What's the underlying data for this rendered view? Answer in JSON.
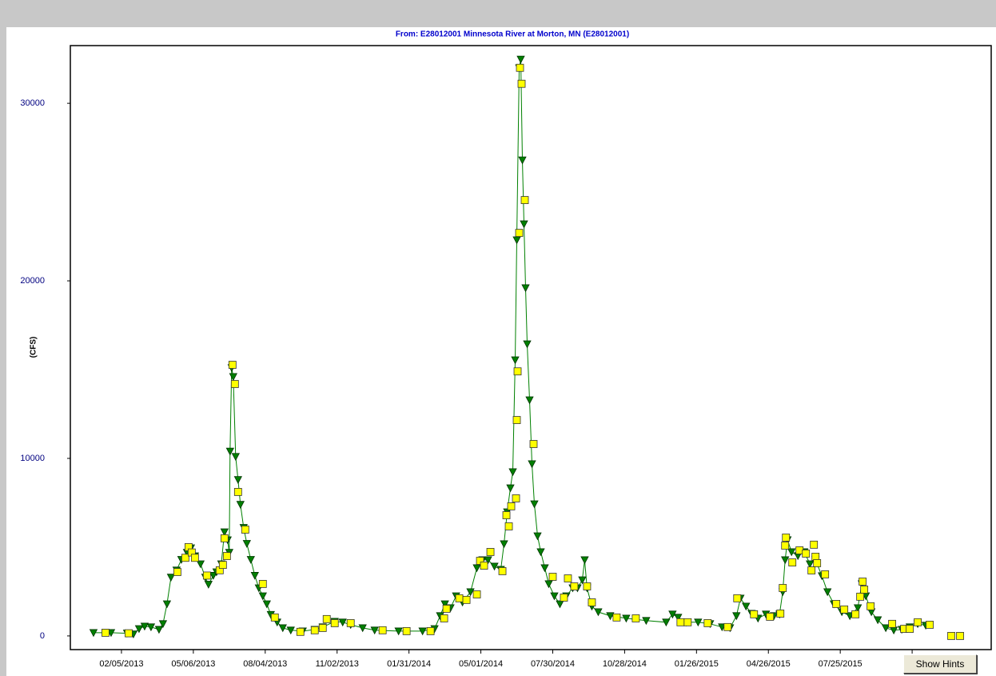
{
  "chart_data": {
    "type": "line",
    "title": "From: E28012001  Minnesota River at Morton, MN (E28012001)",
    "ylabel": "(CFS)",
    "xlim": [
      "2012-12-03",
      "2016-01-30"
    ],
    "xticks": [
      {
        "value": "2013-02-05",
        "label": "02/05/2013"
      },
      {
        "value": "2013-05-06",
        "label": "05/06/2013"
      },
      {
        "value": "2013-08-04",
        "label": "08/04/2013"
      },
      {
        "value": "2013-11-02",
        "label": "11/02/2013"
      },
      {
        "value": "2014-01-31",
        "label": "01/31/2014"
      },
      {
        "value": "2014-05-01",
        "label": "05/01/2014"
      },
      {
        "value": "2014-07-30",
        "label": "07/30/2014"
      },
      {
        "value": "2014-10-28",
        "label": "10/28/2014"
      },
      {
        "value": "2015-01-26",
        "label": "01/26/2015"
      },
      {
        "value": "2015-04-26",
        "label": "04/26/2015"
      },
      {
        "value": "2015-07-25",
        "label": "07/25/2015"
      },
      {
        "value": "2015-10-23",
        "label": "10/"
      }
    ],
    "ylim": [
      -770,
      33250
    ],
    "yticks": [
      0,
      10000,
      20000,
      30000
    ],
    "series": [
      {
        "color": "#008000",
        "marker": "triangle",
        "line": true,
        "x": [
          "2013-01-01",
          "2013-01-23",
          "2013-02-12",
          "2013-02-20",
          "2013-02-27",
          "2013-03-06",
          "2013-03-14",
          "2013-03-24",
          "2013-03-29",
          "2013-04-03",
          "2013-04-08",
          "2013-04-15",
          "2013-04-21",
          "2013-04-28",
          "2013-05-03",
          "2013-05-08",
          "2013-05-15",
          "2013-05-21",
          "2013-05-25",
          "2013-05-31",
          "2013-06-04",
          "2013-06-10",
          "2013-06-14",
          "2013-06-18",
          "2013-06-20",
          "2013-06-21",
          "2013-06-23",
          "2013-06-25",
          "2013-06-28",
          "2013-07-01",
          "2013-07-04",
          "2013-07-08",
          "2013-07-12",
          "2013-07-17",
          "2013-07-22",
          "2013-07-27",
          "2013-08-01",
          "2013-08-06",
          "2013-08-11",
          "2013-08-19",
          "2013-08-26",
          "2013-09-05",
          "2013-09-20",
          "2013-10-05",
          "2013-10-15",
          "2013-10-30",
          "2013-11-09",
          "2013-11-19",
          "2013-12-04",
          "2013-12-19",
          "2014-01-18",
          "2014-02-17",
          "2014-03-04",
          "2014-03-11",
          "2014-03-17",
          "2014-03-24",
          "2014-03-31",
          "2014-04-08",
          "2014-04-18",
          "2014-04-26",
          "2014-05-03",
          "2014-05-10",
          "2014-05-18",
          "2014-05-26",
          "2014-05-30",
          "2014-06-03",
          "2014-06-07",
          "2014-06-10",
          "2014-06-13",
          "2014-06-15",
          "2014-06-18",
          "2014-06-20",
          "2014-06-22",
          "2014-06-24",
          "2014-06-26",
          "2014-06-28",
          "2014-07-01",
          "2014-07-04",
          "2014-07-07",
          "2014-07-11",
          "2014-07-15",
          "2014-07-20",
          "2014-07-25",
          "2014-08-01",
          "2014-08-08",
          "2014-08-16",
          "2014-08-24",
          "2014-08-30",
          "2014-09-05",
          "2014-09-08",
          "2014-09-11",
          "2014-09-17",
          "2014-09-25",
          "2014-10-10",
          "2014-10-30",
          "2014-11-24",
          "2014-12-19",
          "2014-12-27",
          "2015-01-03",
          "2015-01-13",
          "2015-01-28",
          "2015-02-12",
          "2015-02-27",
          "2015-03-09",
          "2015-03-17",
          "2015-03-22",
          "2015-03-29",
          "2015-04-05",
          "2015-04-13",
          "2015-04-23",
          "2015-05-03",
          "2015-05-10",
          "2015-05-14",
          "2015-05-17",
          "2015-05-20",
          "2015-05-25",
          "2015-06-02",
          "2015-06-10",
          "2015-06-17",
          "2015-06-24",
          "2015-07-02",
          "2015-07-09",
          "2015-07-17",
          "2015-07-27",
          "2015-08-06",
          "2015-08-16",
          "2015-08-21",
          "2015-08-26",
          "2015-09-02",
          "2015-09-10",
          "2015-09-20",
          "2015-09-30",
          "2015-10-10",
          "2015-10-20",
          "2015-10-30",
          "2015-11-09"
        ],
        "values": [
          180,
          180,
          150,
          100,
          400,
          540,
          500,
          360,
          680,
          1800,
          3300,
          3700,
          4300,
          4700,
          4950,
          4500,
          4050,
          3300,
          2900,
          3400,
          3600,
          4050,
          5850,
          5400,
          4700,
          10400,
          15100,
          14600,
          10100,
          8800,
          7400,
          6100,
          5200,
          4300,
          3400,
          2700,
          2250,
          1800,
          1200,
          770,
          450,
          320,
          270,
          360,
          500,
          810,
          770,
          630,
          450,
          320,
          270,
          270,
          400,
          1130,
          1800,
          1580,
          2250,
          1900,
          2480,
          3830,
          4280,
          4280,
          3920,
          3740,
          5180,
          6980,
          8330,
          9240,
          15540,
          22300,
          31990,
          32480,
          26800,
          23200,
          19600,
          16440,
          13290,
          9690,
          7430,
          5630,
          4730,
          3830,
          2930,
          2250,
          1800,
          2250,
          2700,
          2700,
          3150,
          4280,
          2700,
          1670,
          1350,
          1130,
          990,
          860,
          770,
          1220,
          1040,
          770,
          770,
          680,
          500,
          450,
          1130,
          2120,
          1670,
          1260,
          990,
          1220,
          1130,
          1220,
          2480,
          4280,
          5410,
          4730,
          4510,
          4730,
          4050,
          4280,
          3380,
          2480,
          1800,
          1350,
          1130,
          1580,
          2930,
          2250,
          1350,
          900,
          450,
          320,
          360,
          500,
          680,
          590
        ]
      },
      {
        "color": "#ffff00",
        "marker": "square",
        "line": false,
        "x": [
          "2013-01-16",
          "2013-02-14",
          "2013-04-16",
          "2013-04-26",
          "2013-04-30",
          "2013-05-04",
          "2013-05-08",
          "2013-05-23",
          "2013-06-08",
          "2013-06-12",
          "2013-06-14",
          "2013-06-17",
          "2013-06-24",
          "2013-06-27",
          "2013-07-01",
          "2013-07-10",
          "2013-08-01",
          "2013-08-16",
          "2013-09-17",
          "2013-10-05",
          "2013-10-15",
          "2013-10-20",
          "2013-10-30",
          "2013-11-19",
          "2013-12-29",
          "2014-01-28",
          "2014-02-27",
          "2014-03-16",
          "2014-03-19",
          "2014-04-04",
          "2014-04-13",
          "2014-04-26",
          "2014-04-30",
          "2014-05-05",
          "2014-05-13",
          "2014-05-28",
          "2014-06-02",
          "2014-06-05",
          "2014-06-08",
          "2014-06-14",
          "2014-06-15",
          "2014-06-16",
          "2014-06-18",
          "2014-06-19",
          "2014-06-21",
          "2014-06-25",
          "2014-07-06",
          "2014-07-30",
          "2014-08-13",
          "2014-08-18",
          "2014-08-26",
          "2014-09-11",
          "2014-09-17",
          "2014-10-18",
          "2014-11-11",
          "2015-01-06",
          "2015-01-15",
          "2015-02-09",
          "2015-03-06",
          "2015-03-18",
          "2015-04-08",
          "2015-04-28",
          "2015-05-11",
          "2015-05-14",
          "2015-05-17",
          "2015-05-18",
          "2015-05-26",
          "2015-06-04",
          "2015-06-12",
          "2015-06-19",
          "2015-06-22",
          "2015-06-24",
          "2015-06-26",
          "2015-07-06",
          "2015-07-20",
          "2015-07-30",
          "2015-08-13",
          "2015-08-19",
          "2015-08-22",
          "2015-08-24",
          "2015-09-01",
          "2015-09-28",
          "2015-10-13",
          "2015-10-20",
          "2015-10-30",
          "2015-11-14",
          "2015-12-11",
          "2015-12-22"
        ],
        "values": [
          180,
          150,
          3600,
          4400,
          5000,
          4700,
          4400,
          3400,
          3700,
          4000,
          5500,
          4500,
          15270,
          14190,
          8110,
          5990,
          2930,
          1040,
          230,
          320,
          450,
          950,
          720,
          720,
          320,
          270,
          270,
          990,
          1530,
          2120,
          2030,
          2340,
          4230,
          3960,
          4730,
          3650,
          6800,
          6170,
          7300,
          7750,
          12160,
          14900,
          22700,
          32000,
          31100,
          24550,
          10810,
          3330,
          2160,
          3240,
          2790,
          2790,
          1890,
          1040,
          990,
          770,
          770,
          720,
          500,
          2120,
          1220,
          1080,
          1260,
          2700,
          5090,
          5540,
          4140,
          4820,
          4640,
          3690,
          5140,
          4460,
          4100,
          3470,
          1800,
          1490,
          1220,
          2210,
          3060,
          2610,
          1670,
          680,
          400,
          400,
          770,
          630,
          0,
          0
        ]
      }
    ]
  },
  "button": "Show Hints"
}
